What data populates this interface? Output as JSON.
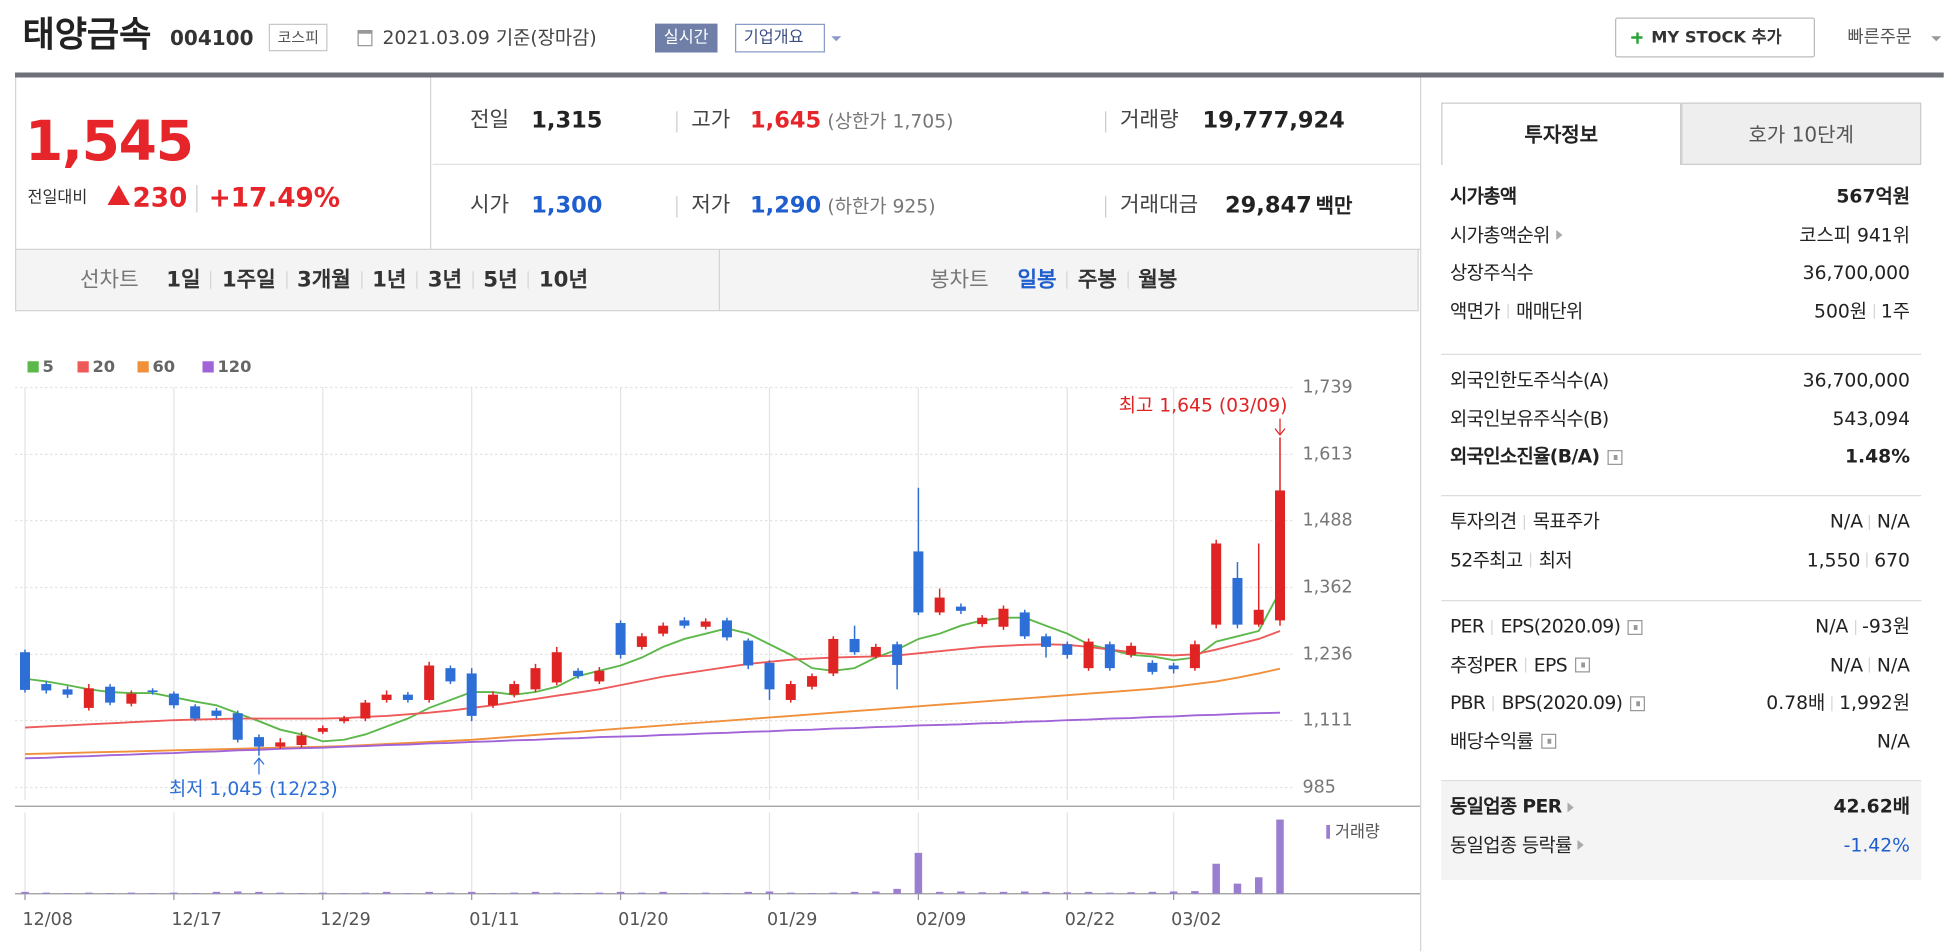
{
  "header": {
    "name": "태양금속",
    "code": "004100",
    "market": "코스피",
    "date": "2021.03.09 기준(장마감)",
    "realtime": "실시간",
    "overview": "기업개요",
    "mystock": "MY STOCK 추가",
    "quick_order": "빠른주문"
  },
  "price": {
    "current": "1,545",
    "change_label": "전일대비",
    "change": "230",
    "rate": "+17.49%"
  },
  "summary": {
    "rows": [
      [
        {
          "label": "전일",
          "value": "1,315"
        },
        {
          "label": "고가",
          "value": "1,645",
          "note": "(상한가 1,705)"
        },
        {
          "label": "거래량",
          "value": "19,777,924"
        }
      ],
      [
        {
          "label": "시가",
          "value": "1,300"
        },
        {
          "label": "저가",
          "value": "1,290",
          "note": "(하한가 925)"
        },
        {
          "label": "거래대금",
          "value": "29,847",
          "unit": "백만"
        }
      ]
    ]
  },
  "tabs": {
    "line_label": "선차트",
    "line": [
      "1일",
      "1주일",
      "3개월",
      "1년",
      "3년",
      "5년",
      "10년"
    ],
    "candle_label": "봉차트",
    "candle": [
      "일봉",
      "주봉",
      "월봉"
    ]
  },
  "side": {
    "tabs": [
      "투자정보",
      "호가 10단계"
    ],
    "groups": [
      {
        "rows": [
          {
            "label": [
              "시가총액"
            ],
            "value": [
              "567억원"
            ],
            "bold": true
          },
          {
            "label": [
              "시가총액순위"
            ],
            "arrow": true,
            "value": [
              "코스피 941위"
            ]
          },
          {
            "label": [
              "상장주식수"
            ],
            "value": [
              "36,700,000"
            ]
          },
          {
            "label": [
              "액면가",
              "매매단위"
            ],
            "value": [
              "500원",
              "1주"
            ]
          }
        ]
      },
      {
        "rows": [
          {
            "label": [
              "외국인한도주식수(A)"
            ],
            "value": [
              "36,700,000"
            ]
          },
          {
            "label": [
              "외국인보유주식수(B)"
            ],
            "value": [
              "543,094"
            ]
          },
          {
            "label": [
              "외국인소진율(B/A)"
            ],
            "help": true,
            "value": [
              "1.48%"
            ],
            "bold": true
          }
        ]
      },
      {
        "rows": [
          {
            "label": [
              "투자의견",
              "목표주가"
            ],
            "value": [
              "N/A",
              "N/A"
            ]
          },
          {
            "label": [
              "52주최고",
              "최저"
            ],
            "value": [
              "1,550",
              "670"
            ]
          }
        ]
      },
      {
        "rows": [
          {
            "label": [
              "PER",
              "EPS(2020.09)"
            ],
            "help": true,
            "value": [
              "N/A",
              "-93원"
            ]
          },
          {
            "label": [
              "추정PER",
              "EPS"
            ],
            "help": true,
            "value": [
              "N/A",
              "N/A"
            ]
          },
          {
            "label": [
              "PBR",
              "BPS(2020.09)"
            ],
            "help": true,
            "value": [
              "0.78배",
              "1,992원"
            ]
          },
          {
            "label": [
              "배당수익률"
            ],
            "help": true,
            "value": [
              "N/A"
            ]
          }
        ]
      },
      {
        "shaded": true,
        "rows": [
          {
            "label": [
              "동일업종 PER"
            ],
            "arrow": true,
            "value": [
              "42.62배"
            ],
            "bold": true
          },
          {
            "label": [
              "동일업종 등락률"
            ],
            "arrow": true,
            "value": [
              "-1.42%"
            ],
            "color": "#1f5ecf"
          }
        ]
      }
    ]
  },
  "chart_data": {
    "type": "candlestick",
    "grid": true,
    "categories": [
      "12/08",
      null,
      null,
      null,
      null,
      null,
      null,
      "12/17",
      null,
      null,
      null,
      null,
      null,
      null,
      "12/29",
      null,
      null,
      null,
      null,
      null,
      null,
      "01/11",
      null,
      null,
      null,
      null,
      null,
      null,
      "01/20",
      null,
      null,
      null,
      null,
      null,
      null,
      "01/29",
      null,
      null,
      null,
      null,
      null,
      null,
      "02/09",
      null,
      null,
      null,
      null,
      null,
      null,
      "02/22",
      null,
      null,
      null,
      null,
      "03/02",
      null,
      null,
      null,
      null,
      null
    ],
    "open": [
      1240,
      1180,
      1170,
      1135,
      1175,
      1143,
      1168,
      1162,
      1138,
      1130,
      1125,
      1080,
      1062,
      1065,
      1090,
      1110,
      1115,
      1150,
      1160,
      1150,
      1210,
      1200,
      1140,
      1160,
      1170,
      1183,
      1205,
      1185,
      1295,
      1250,
      1275,
      1300,
      1288,
      1300,
      1262,
      1220,
      1150,
      1175,
      1200,
      1265,
      1232,
      1255,
      1430,
      1315,
      1326,
      1293,
      1288,
      1315,
      1270,
      1255,
      1210,
      1255,
      1235,
      1220,
      1215,
      1210,
      1292,
      1380,
      1292,
      1300
    ],
    "high": [
      1245,
      1185,
      1176,
      1180,
      1180,
      1168,
      1172,
      1166,
      1142,
      1135,
      1130,
      1085,
      1078,
      1090,
      1102,
      1120,
      1150,
      1168,
      1165,
      1222,
      1215,
      1210,
      1166,
      1186,
      1218,
      1250,
      1210,
      1212,
      1300,
      1276,
      1296,
      1306,
      1304,
      1305,
      1266,
      1225,
      1186,
      1200,
      1270,
      1290,
      1256,
      1260,
      1550,
      1360,
      1332,
      1310,
      1328,
      1320,
      1275,
      1260,
      1266,
      1260,
      1258,
      1225,
      1220,
      1262,
      1452,
      1410,
      1445,
      1645
    ],
    "low": [
      1164,
      1162,
      1154,
      1130,
      1140,
      1138,
      1160,
      1134,
      1110,
      1115,
      1070,
      1045,
      1058,
      1060,
      1086,
      1106,
      1110,
      1145,
      1145,
      1145,
      1180,
      1110,
      1135,
      1155,
      1165,
      1178,
      1190,
      1180,
      1228,
      1245,
      1270,
      1285,
      1283,
      1262,
      1208,
      1150,
      1145,
      1170,
      1195,
      1235,
      1228,
      1170,
      1310,
      1310,
      1312,
      1288,
      1282,
      1265,
      1230,
      1228,
      1205,
      1205,
      1230,
      1198,
      1200,
      1205,
      1285,
      1285,
      1288,
      1290
    ],
    "close": [
      1169,
      1168,
      1160,
      1172,
      1145,
      1162,
      1165,
      1140,
      1115,
      1120,
      1075,
      1062,
      1070,
      1083,
      1097,
      1115,
      1145,
      1160,
      1150,
      1215,
      1185,
      1120,
      1160,
      1180,
      1210,
      1240,
      1195,
      1205,
      1235,
      1270,
      1290,
      1290,
      1298,
      1268,
      1215,
      1170,
      1180,
      1195,
      1265,
      1240,
      1250,
      1216,
      1315,
      1343,
      1318,
      1305,
      1322,
      1270,
      1250,
      1235,
      1260,
      1210,
      1252,
      1203,
      1208,
      1255,
      1445,
      1292,
      1320,
      1545
    ],
    "volume": [
      500000,
      300000,
      200000,
      300000,
      200000,
      300000,
      200000,
      300000,
      200000,
      500000,
      600000,
      500000,
      300000,
      200000,
      300000,
      200000,
      300000,
      500000,
      200000,
      500000,
      300000,
      500000,
      200000,
      300000,
      500000,
      300000,
      200000,
      300000,
      500000,
      300000,
      500000,
      200000,
      300000,
      200000,
      500000,
      600000,
      300000,
      200000,
      300000,
      500000,
      600000,
      1300000,
      10900000,
      500000,
      600000,
      400000,
      500000,
      600000,
      500000,
      400000,
      500000,
      300000,
      400000,
      500000,
      600000,
      700000,
      8000000,
      2700000,
      4400000,
      19777924
    ],
    "up_color": "#e02424",
    "down_color": "#2d6fd6",
    "volume_color": "#9a7fd1",
    "volume_label": "거래량",
    "volume_ylim": [
      0,
      20000000
    ],
    "max_label": "최고 1,645 (03/09)",
    "min_label": "최저 1,045 (12/23)",
    "ylim": [
      985,
      1739
    ],
    "yticks": [
      {
        "value": 1739,
        "label": "1,739"
      },
      {
        "value": 1613,
        "label": "1,613"
      },
      {
        "value": 1488,
        "label": "1,488"
      },
      {
        "value": 1362,
        "label": "1,362"
      },
      {
        "value": 1236,
        "label": "1,236"
      },
      {
        "value": 1111,
        "label": "1,111"
      },
      985
    ],
    "series": [
      {
        "name": "5",
        "color": "#5cb84a",
        "values": [
          1190,
          1185,
          1178,
          1170,
          1165,
          1163,
          1163,
          1155,
          1147,
          1140,
          1125,
          1110,
          1094,
          1085,
          1072,
          1075,
          1085,
          1100,
          1115,
          1135,
          1150,
          1165,
          1165,
          1160,
          1165,
          1175,
          1195,
          1205,
          1215,
          1230,
          1250,
          1265,
          1275,
          1285,
          1275,
          1255,
          1235,
          1210,
          1205,
          1210,
          1230,
          1245,
          1265,
          1275,
          1290,
          1300,
          1305,
          1305,
          1290,
          1275,
          1255,
          1245,
          1235,
          1232,
          1225,
          1230,
          1260,
          1270,
          1280,
          1355
        ]
      },
      {
        "name": "20",
        "color": "#ee5a5a",
        "values": [
          1098,
          1100,
          1102,
          1104,
          1106,
          1108,
          1110,
          1112,
          1113,
          1114,
          1115,
          1115,
          1115,
          1115,
          1115,
          1116,
          1118,
          1120,
          1123,
          1126,
          1130,
          1135,
          1140,
          1146,
          1152,
          1158,
          1164,
          1170,
          1178,
          1186,
          1194,
          1200,
          1206,
          1212,
          1218,
          1222,
          1226,
          1228,
          1230,
          1231,
          1232,
          1234,
          1238,
          1242,
          1246,
          1250,
          1252,
          1254,
          1255,
          1254,
          1250,
          1245,
          1240,
          1236,
          1234,
          1236,
          1245,
          1255,
          1265,
          1280
        ]
      },
      {
        "name": "60",
        "color": "#f0903a",
        "values": [
          1048,
          1049,
          1050,
          1051,
          1052,
          1053,
          1054,
          1055,
          1056,
          1057,
          1058,
          1059,
          1060,
          1061,
          1062,
          1063,
          1065,
          1067,
          1069,
          1071,
          1073,
          1075,
          1078,
          1081,
          1084,
          1087,
          1090,
          1093,
          1096,
          1099,
          1102,
          1105,
          1108,
          1111,
          1114,
          1117,
          1120,
          1123,
          1126,
          1129,
          1132,
          1135,
          1138,
          1141,
          1144,
          1147,
          1150,
          1153,
          1156,
          1159,
          1162,
          1165,
          1168,
          1171,
          1175,
          1180,
          1185,
          1192,
          1200,
          1209
        ]
      },
      {
        "name": "120",
        "color": "#a063d8",
        "values": [
          1040,
          1041,
          1043,
          1044,
          1046,
          1047,
          1049,
          1050,
          1052,
          1053,
          1055,
          1056,
          1058,
          1059,
          1060,
          1062,
          1063,
          1065,
          1066,
          1068,
          1069,
          1071,
          1072,
          1074,
          1075,
          1077,
          1078,
          1080,
          1081,
          1082,
          1084,
          1085,
          1087,
          1088,
          1090,
          1091,
          1093,
          1094,
          1096,
          1097,
          1099,
          1100,
          1102,
          1103,
          1104,
          1106,
          1107,
          1109,
          1110,
          1112,
          1113,
          1115,
          1116,
          1118,
          1119,
          1121,
          1122,
          1124,
          1125,
          1126
        ]
      }
    ]
  }
}
